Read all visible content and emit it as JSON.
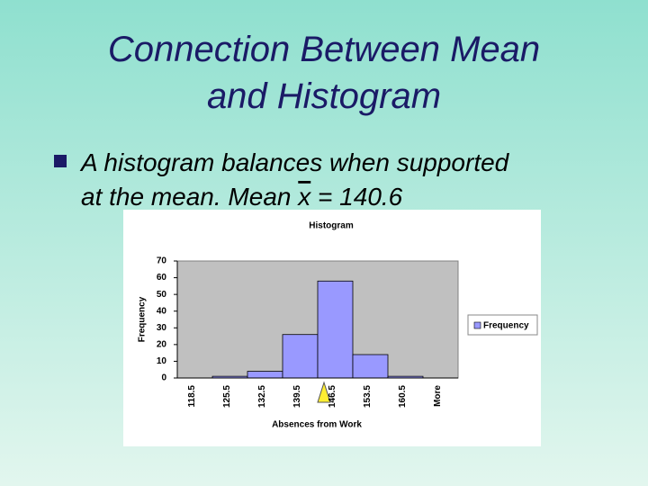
{
  "slide": {
    "title_lines": [
      "Connection Between Mean",
      "and Histogram"
    ],
    "bullet": [
      "A histogram balances when supported",
      "at the mean. Mean",
      "x",
      "= 140.6"
    ]
  },
  "chart_data": {
    "type": "bar",
    "title": "Histogram",
    "x_label": "Absences from Work",
    "y_label": "Frequency",
    "categories": [
      "118.5",
      "125.5",
      "132.5",
      "139.5",
      "146.5",
      "153.5",
      "160.5",
      "More"
    ],
    "series": [
      {
        "name": "Frequency",
        "color": "#9999ff",
        "values": [
          0,
          1,
          4,
          26,
          58,
          14,
          1,
          0
        ]
      }
    ],
    "ylim": [
      0,
      70
    ],
    "yticks": [
      0,
      10,
      20,
      30,
      40,
      50,
      60,
      70
    ],
    "legend": "right"
  }
}
